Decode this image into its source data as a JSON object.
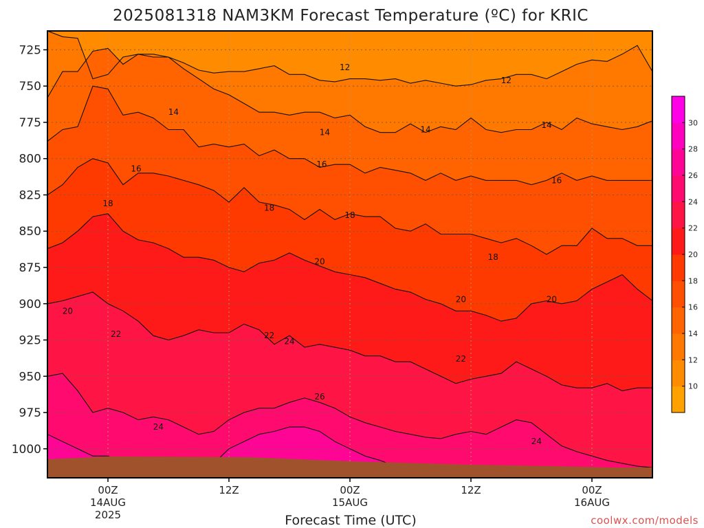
{
  "chart_data": {
    "type": "heatmap",
    "title": "2025081318 NAM3KM Forecast Temperature (ºC) for KRIC",
    "xlabel": "Forecast Time (UTC)",
    "ylabel": "",
    "credit": "coolwx.com/models",
    "y_axis": {
      "ticks": [
        725,
        750,
        775,
        800,
        825,
        850,
        875,
        900,
        925,
        950,
        975,
        1000
      ],
      "range": [
        712,
        1020
      ],
      "inverted": true,
      "units": "hPa"
    },
    "x_axis": {
      "range_hours": [
        0,
        60
      ],
      "ticks": [
        {
          "hour": 6,
          "label": "00Z",
          "sub1": "14AUG",
          "sub2": "2025"
        },
        {
          "hour": 18,
          "label": "12Z",
          "sub1": "",
          "sub2": ""
        },
        {
          "hour": 30,
          "label": "00Z",
          "sub1": "15AUG",
          "sub2": ""
        },
        {
          "hour": 42,
          "label": "12Z",
          "sub1": "",
          "sub2": ""
        },
        {
          "hour": 54,
          "label": "00Z",
          "sub1": "16AUG",
          "sub2": ""
        }
      ]
    },
    "grid": true,
    "legend": "right",
    "colorbar": {
      "levels": [
        8,
        10,
        12,
        14,
        16,
        18,
        20,
        22,
        24,
        26,
        28,
        30,
        32
      ],
      "tick_labels": [
        10,
        12,
        14,
        16,
        18,
        20,
        22,
        24,
        26,
        28,
        30
      ],
      "colors": [
        "#ffa200",
        "#ff8c00",
        "#ff7800",
        "#ff6400",
        "#ff4f00",
        "#ff3a00",
        "#ff1a1a",
        "#ff1446",
        "#ff0a6e",
        "#ff0596",
        "#ff00be",
        "#ff00e6"
      ]
    },
    "ground_color": "#a0522d",
    "isotherms": [
      {
        "value": 12,
        "pressures": [
          712,
          716,
          717,
          745,
          742,
          730,
          728,
          728,
          730,
          734,
          739,
          741,
          740,
          740,
          738,
          736,
          742,
          742,
          746,
          747,
          745,
          745,
          746,
          745,
          748,
          746,
          748,
          750,
          749,
          746,
          745,
          742,
          742,
          745,
          740,
          735,
          732,
          733,
          728,
          722,
          740
        ]
      },
      {
        "value": 14,
        "pressures": [
          758,
          740,
          740,
          726,
          724,
          735,
          728,
          730,
          730,
          738,
          745,
          752,
          756,
          762,
          768,
          768,
          770,
          768,
          768,
          772,
          770,
          778,
          782,
          782,
          776,
          782,
          778,
          780,
          772,
          780,
          782,
          780,
          780,
          775,
          780,
          772,
          776,
          778,
          780,
          778,
          774
        ]
      },
      {
        "value": 16,
        "pressures": [
          788,
          780,
          778,
          750,
          752,
          770,
          768,
          772,
          780,
          780,
          792,
          790,
          792,
          790,
          798,
          794,
          800,
          800,
          806,
          804,
          804,
          810,
          806,
          808,
          810,
          815,
          810,
          815,
          812,
          815,
          815,
          815,
          818,
          815,
          810,
          815,
          812,
          815,
          815,
          815,
          815
        ]
      },
      {
        "value": 18,
        "pressures": [
          825,
          818,
          806,
          800,
          803,
          818,
          810,
          810,
          812,
          815,
          818,
          822,
          830,
          820,
          830,
          832,
          835,
          842,
          835,
          842,
          838,
          840,
          840,
          848,
          850,
          845,
          852,
          852,
          852,
          855,
          858,
          855,
          860,
          866,
          860,
          860,
          848,
          855,
          855,
          860,
          860
        ]
      },
      {
        "value": 20,
        "pressures": [
          862,
          858,
          850,
          840,
          838,
          850,
          856,
          858,
          862,
          868,
          868,
          870,
          875,
          878,
          872,
          870,
          865,
          870,
          874,
          878,
          880,
          882,
          886,
          890,
          892,
          897,
          900,
          905,
          905,
          908,
          912,
          910,
          900,
          898,
          900,
          898,
          890,
          885,
          880,
          890,
          898
        ]
      },
      {
        "value": 22,
        "pressures": [
          900,
          898,
          895,
          892,
          900,
          905,
          912,
          922,
          925,
          922,
          918,
          920,
          920,
          914,
          918,
          928,
          922,
          930,
          928,
          930,
          932,
          936,
          936,
          940,
          940,
          945,
          950,
          955,
          952,
          950,
          948,
          940,
          945,
          950,
          956,
          958,
          958,
          955,
          960,
          958,
          958
        ]
      },
      {
        "value": 24,
        "pressures": [
          950,
          948,
          960,
          975,
          972,
          975,
          980,
          978,
          980,
          985,
          990,
          988,
          980,
          975,
          972,
          972,
          968,
          965,
          968,
          972,
          978,
          982,
          985,
          988,
          990,
          992,
          993,
          990,
          988,
          990,
          985,
          980,
          982,
          990,
          998,
          1002,
          1005,
          1008,
          1010,
          1012,
          1013
        ]
      },
      {
        "value": 26,
        "pressures": [
          990,
          995,
          1000,
          1005,
          1005,
          1010,
          1015,
          1015,
          1015,
          1015,
          1015,
          1010,
          1000,
          995,
          990,
          988,
          985,
          985,
          988,
          995,
          1000,
          1005,
          1008,
          1012,
          1015,
          1015,
          1015,
          1015,
          1015,
          1015,
          1015,
          1015,
          1015,
          1015,
          1015,
          1015,
          1015,
          1015,
          1015,
          1015,
          1015
        ]
      }
    ],
    "contour_labels": [
      {
        "text": "12",
        "hour": 29.5,
        "p": 737
      },
      {
        "text": "12",
        "hour": 45.5,
        "p": 746
      },
      {
        "text": "14",
        "hour": 12.5,
        "p": 768
      },
      {
        "text": "14",
        "hour": 27.5,
        "p": 782
      },
      {
        "text": "14",
        "hour": 37.5,
        "p": 780
      },
      {
        "text": "14",
        "hour": 49.5,
        "p": 777
      },
      {
        "text": "16",
        "hour": 8.8,
        "p": 807
      },
      {
        "text": "16",
        "hour": 27.2,
        "p": 804
      },
      {
        "text": "16",
        "hour": 50.5,
        "p": 815
      },
      {
        "text": "18",
        "hour": 6.0,
        "p": 831
      },
      {
        "text": "18",
        "hour": 22.0,
        "p": 834
      },
      {
        "text": "18",
        "hour": 30.0,
        "p": 839
      },
      {
        "text": "18",
        "hour": 44.2,
        "p": 868
      },
      {
        "text": "20",
        "hour": 2.0,
        "p": 905
      },
      {
        "text": "20",
        "hour": 27.0,
        "p": 871
      },
      {
        "text": "20",
        "hour": 41.0,
        "p": 897
      },
      {
        "text": "20",
        "hour": 50.0,
        "p": 897
      },
      {
        "text": "22",
        "hour": 6.8,
        "p": 921
      },
      {
        "text": "22",
        "hour": 22.0,
        "p": 922
      },
      {
        "text": "22",
        "hour": 41.0,
        "p": 938
      },
      {
        "text": "24",
        "hour": 24.0,
        "p": 926
      },
      {
        "text": "24",
        "hour": 11.0,
        "p": 985
      },
      {
        "text": "24",
        "hour": 48.5,
        "p": 995
      },
      {
        "text": "26",
        "hour": 27.0,
        "p": 964
      }
    ]
  }
}
